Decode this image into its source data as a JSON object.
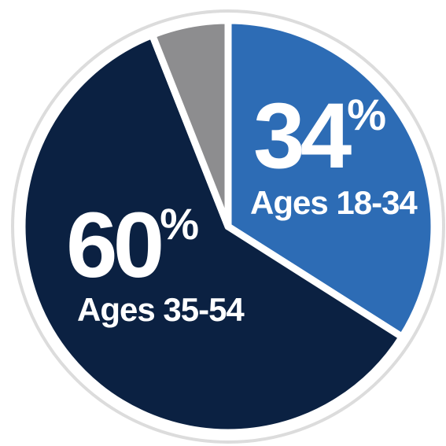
{
  "chart_data": {
    "type": "pie",
    "slices": [
      {
        "value": 34,
        "percent_label": "34",
        "percent_sign": "%",
        "category": "Ages 18-34",
        "color": "#2d6cb5"
      },
      {
        "value": 60,
        "percent_label": "60",
        "percent_sign": "%",
        "category": "Ages 35-54",
        "color": "#0b2142"
      },
      {
        "value": 6,
        "color": "#8d8d8f"
      }
    ],
    "border_color": "#ffffff",
    "outer_ring_color": "#dcdcdc"
  }
}
